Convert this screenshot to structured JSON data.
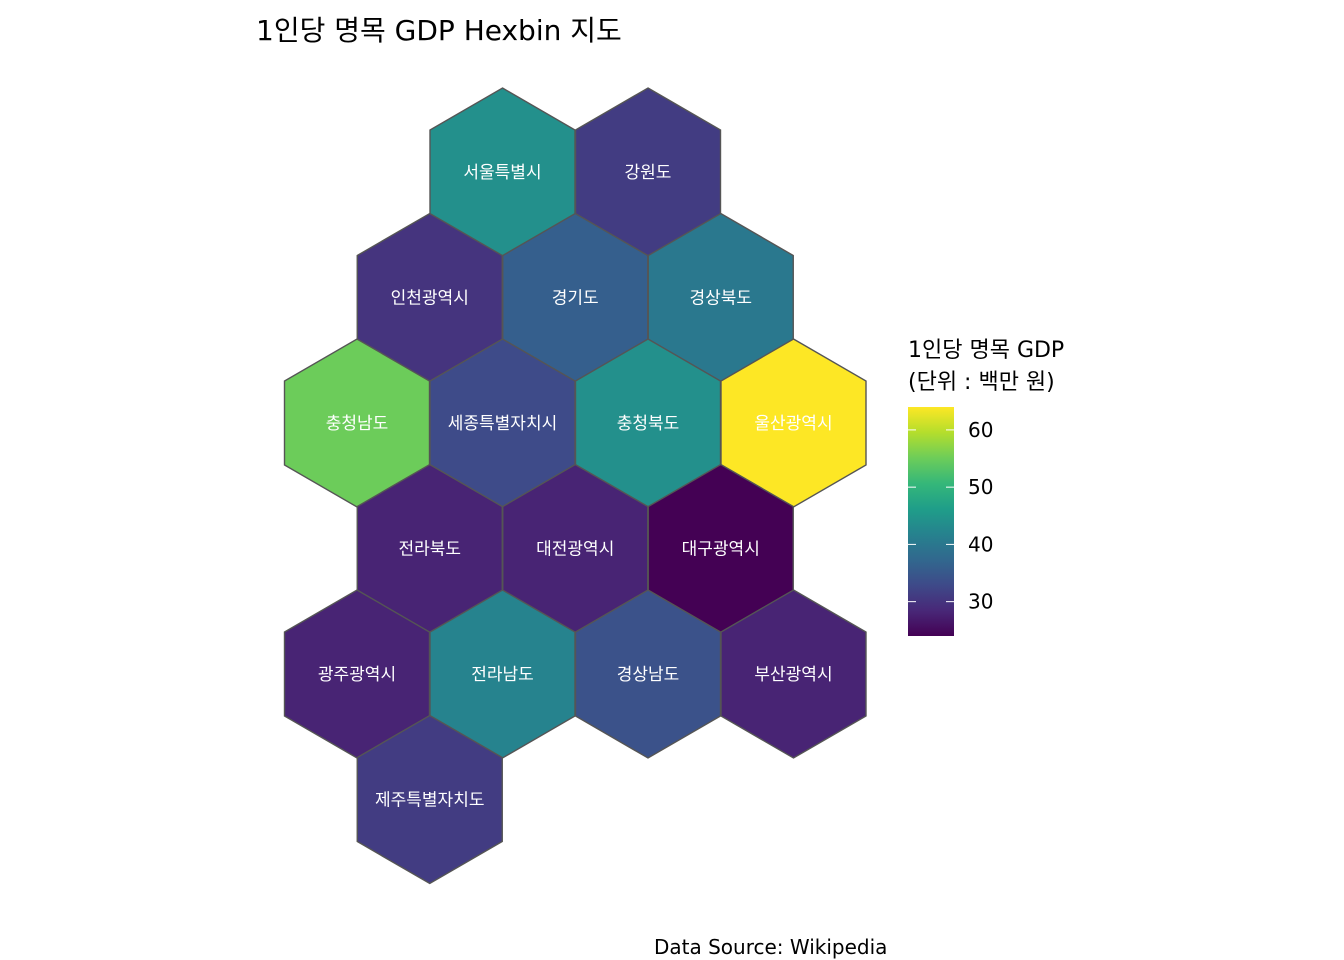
{
  "chart_data": {
    "type": "heatmap",
    "subtype": "hexbin-map",
    "title": "1인당 명목 GDP Hexbin 지도",
    "caption": "Data Source: Wikipedia",
    "color_scale": "viridis",
    "legend": {
      "title_line1": "1인당 명목 GDP",
      "title_line2": "(단위 : 백만 원)",
      "placement": "right",
      "ticks": [
        60,
        50,
        40,
        30
      ],
      "tick_labels": [
        "60",
        "50",
        "40",
        "30"
      ],
      "range": [
        24,
        64
      ]
    },
    "regions": [
      {
        "name": "서울특별시",
        "col": 1,
        "row": 0,
        "value": 44
      },
      {
        "name": "강원도",
        "col": 2,
        "row": 0,
        "value": 31
      },
      {
        "name": "인천광역시",
        "col": 0.5,
        "row": 1,
        "value": 30
      },
      {
        "name": "경기도",
        "col": 1.5,
        "row": 1,
        "value": 36
      },
      {
        "name": "경상북도",
        "col": 2.5,
        "row": 1,
        "value": 40
      },
      {
        "name": "충청남도",
        "col": 0,
        "row": 2,
        "value": 55
      },
      {
        "name": "세종특별자치시",
        "col": 1,
        "row": 2,
        "value": 33
      },
      {
        "name": "충청북도",
        "col": 2,
        "row": 2,
        "value": 44
      },
      {
        "name": "울산광역시",
        "col": 3,
        "row": 2,
        "value": 64
      },
      {
        "name": "전라북도",
        "col": 0.5,
        "row": 3,
        "value": 28
      },
      {
        "name": "대전광역시",
        "col": 1.5,
        "row": 3,
        "value": 28
      },
      {
        "name": "대구광역시",
        "col": 2.5,
        "row": 3,
        "value": 24
      },
      {
        "name": "광주광역시",
        "col": 0,
        "row": 4,
        "value": 28
      },
      {
        "name": "전라남도",
        "col": 1,
        "row": 4,
        "value": 42
      },
      {
        "name": "경상남도",
        "col": 2,
        "row": 4,
        "value": 34
      },
      {
        "name": "부산광역시",
        "col": 3,
        "row": 4,
        "value": 28
      },
      {
        "name": "제주특별자치도",
        "col": 0.5,
        "row": 5,
        "value": 31
      }
    ],
    "colors": {
      "viridis": [
        "#440154",
        "#482878",
        "#3E4A89",
        "#31688E",
        "#26828E",
        "#1F9E89",
        "#35B779",
        "#6DCD59",
        "#B4DE2C",
        "#FDE725"
      ],
      "hex_border": "#555555",
      "background": "#ffffff"
    }
  }
}
